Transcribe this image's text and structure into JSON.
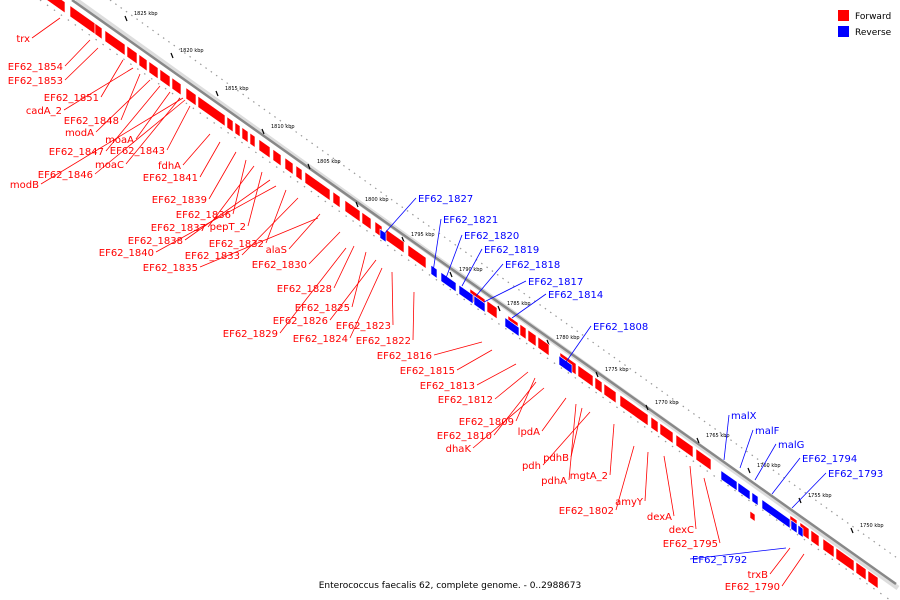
{
  "legend": {
    "forward": {
      "label": "Forward",
      "color": "#ff0000"
    },
    "reverse": {
      "label": "Reverse",
      "color": "#0000ff"
    }
  },
  "caption": "Enterococcus faecalis 62, complete genome. - 0..2988673",
  "ticks": [
    "1825 kbp",
    "1820 kbp",
    "1815 kbp",
    "1810 kbp",
    "1805 kbp",
    "1800 kbp",
    "1795 kbp",
    "1790 kbp",
    "1785 kbp",
    "1780 kbp",
    "1775 kbp",
    "1770 kbp",
    "1765 kbp",
    "1760 kbp",
    "1755 kbp",
    "1750 kbp"
  ],
  "forward_labels": [
    "trx",
    "EF62_1854",
    "EF62_1853",
    "EF62_1851",
    "cadA_2",
    "EF62_1848",
    "modA",
    "EF62_1847",
    "moaA",
    "moaC",
    "EF62_1843",
    "EF62_1846",
    "modB",
    "fdhA",
    "EF62_1841",
    "EF62_1839",
    "EF62_1836",
    "EF62_1837",
    "pepT_2",
    "EF62_1838",
    "EF62_1832",
    "EF62_1840",
    "EF62_1833",
    "alaS",
    "EF62_1835",
    "EF62_1830",
    "EF62_1828",
    "EF62_1825",
    "EF62_1826",
    "EF62_1829",
    "EF62_1823",
    "EF62_1824",
    "EF62_1822",
    "EF62_1816",
    "EF62_1815",
    "EF62_1813",
    "EF62_1812",
    "EF62_1809",
    "EF62_1810",
    "dhaK",
    "lpdA",
    "pdhB",
    "pdh",
    "mgtA_2",
    "pdhA",
    "amyY",
    "EF62_1802",
    "dexA",
    "dexC",
    "EF62_1795",
    "trxB",
    "EF62_1790"
  ],
  "reverse_labels": [
    "EF62_1827",
    "EF62_1821",
    "EF62_1820",
    "EF62_1819",
    "EF62_1818",
    "EF62_1817",
    "EF62_1814",
    "EF62_1808",
    "malX",
    "malF",
    "malG",
    "EF62_1794",
    "EF62_1793",
    "EF62_1792"
  ]
}
